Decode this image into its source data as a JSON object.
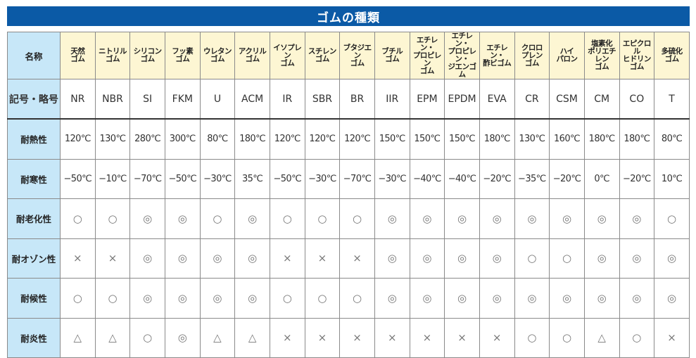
{
  "title": "ゴムの種類",
  "colors": {
    "title_bar": "#0b5aa6",
    "label_column": "#c7e7f8",
    "name_row": "#fdf6d3"
  },
  "table": {
    "name_label": "名称",
    "code_label": "記号・略号",
    "names": [
      "天然\nゴム",
      "ニトリル\nゴム",
      "シリコン\nゴム",
      "フッ素\nゴム",
      "ウレタン\nゴム",
      "アクリル\nゴム",
      "イソプレン\nゴム",
      "スチレン\nゴム",
      "ブタジエン\nゴム",
      "ブチル\nゴム",
      "エチレン・\nプロピレン\nゴム",
      "エチレン・\nプロピレン・\nジエンゴム",
      "エチレン・\n酢ビゴム",
      "クロロ\nプレン\nゴム",
      "ハイ\nパロン",
      "塩素化\nポリエチレン\nゴム",
      "エピクロル\nヒドリン\nゴム",
      "多硫化\nゴム"
    ],
    "codes": [
      "NR",
      "NBR",
      "SI",
      "FKM",
      "U",
      "ACM",
      "IR",
      "SBR",
      "BR",
      "IIR",
      "EPM",
      "EPDM",
      "EVA",
      "CR",
      "CSM",
      "CM",
      "CO",
      "T"
    ],
    "rows": [
      {
        "label": "耐熱性",
        "type": "val",
        "values": [
          "120℃",
          "130℃",
          "280℃",
          "300℃",
          "80℃",
          "180℃",
          "120℃",
          "120℃",
          "120℃",
          "150℃",
          "150℃",
          "150℃",
          "180℃",
          "130℃",
          "160℃",
          "180℃",
          "180℃",
          "80℃"
        ]
      },
      {
        "label": "耐寒性",
        "type": "val",
        "values": [
          "−50℃",
          "−10℃",
          "−70℃",
          "−50℃",
          "−30℃",
          "35℃",
          "−50℃",
          "−30℃",
          "−70℃",
          "−30℃",
          "−40℃",
          "−40℃",
          "−20℃",
          "−35℃",
          "−20℃",
          "0℃",
          "−20℃",
          "10℃"
        ]
      },
      {
        "label": "耐老化性",
        "type": "sym",
        "values": [
          "○",
          "○",
          "◎",
          "◎",
          "○",
          "◎",
          "○",
          "○",
          "○",
          "◎",
          "◎",
          "◎",
          "◎",
          "◎",
          "◎",
          "◎",
          "◎",
          "○"
        ]
      },
      {
        "label": "耐オゾン性",
        "type": "sym",
        "values": [
          "×",
          "×",
          "◎",
          "◎",
          "◎",
          "◎",
          "×",
          "×",
          "×",
          "◎",
          "◎",
          "◎",
          "◎",
          "○",
          "○",
          "◎",
          "◎",
          "◎"
        ]
      },
      {
        "label": "耐候性",
        "type": "sym",
        "values": [
          "○",
          "○",
          "◎",
          "◎",
          "◎",
          "◎",
          "○",
          "○",
          "○",
          "◎",
          "◎",
          "◎",
          "◎",
          "◎",
          "◎",
          "◎",
          "◎",
          "◎"
        ]
      },
      {
        "label": "耐炎性",
        "type": "sym",
        "values": [
          "△",
          "△",
          "○",
          "◎",
          "△",
          "△",
          "×",
          "×",
          "×",
          "×",
          "×",
          "×",
          "×",
          "○",
          "○",
          "△",
          "○",
          "×"
        ]
      }
    ]
  }
}
